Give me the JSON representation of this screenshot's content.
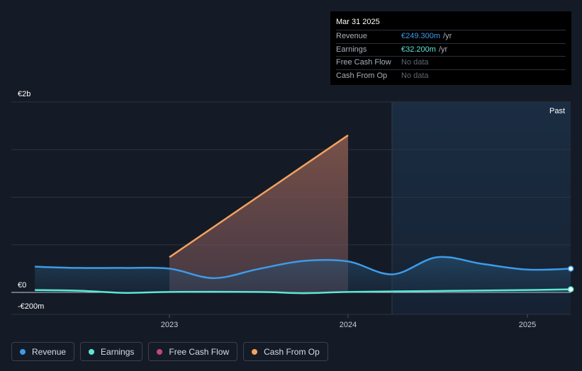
{
  "tooltip": {
    "date": "Mar 31 2025",
    "rows": [
      {
        "label": "Revenue",
        "value": "€249.300m",
        "unit": "/yr",
        "color": "#3d9be9"
      },
      {
        "label": "Earnings",
        "value": "€32.200m",
        "unit": "/yr",
        "color": "#5ee6d6"
      },
      {
        "label": "Free Cash Flow",
        "value": "No data",
        "unit": "",
        "color": ""
      },
      {
        "label": "Cash From Op",
        "value": "No data",
        "unit": "",
        "color": ""
      }
    ]
  },
  "chart_data": {
    "type": "line",
    "y_tick_labels": [
      "€2b",
      "€0",
      "-€200m"
    ],
    "x_tick_labels": [
      "2023",
      "2024",
      "2025"
    ],
    "past_label": "Past",
    "ylim": [
      -200,
      2000
    ],
    "y_unit": "€m",
    "series": [
      {
        "name": "Revenue",
        "color": "#3d9be9",
        "points": [
          [
            "2022-04-01",
            270
          ],
          [
            "2022-07-01",
            257
          ],
          [
            "2022-10-01",
            257
          ],
          [
            "2023-01-01",
            250
          ],
          [
            "2023-04-01",
            150
          ],
          [
            "2023-07-01",
            245
          ],
          [
            "2023-10-01",
            330
          ],
          [
            "2024-01-01",
            325
          ],
          [
            "2024-04-01",
            190
          ],
          [
            "2024-07-01",
            370
          ],
          [
            "2024-10-01",
            300
          ],
          [
            "2025-01-01",
            240
          ],
          [
            "2025-03-31",
            249.3
          ]
        ]
      },
      {
        "name": "Earnings",
        "color": "#5ee6d6",
        "points": [
          [
            "2022-04-01",
            25
          ],
          [
            "2022-07-01",
            18
          ],
          [
            "2022-10-01",
            -5
          ],
          [
            "2023-01-01",
            5
          ],
          [
            "2023-07-01",
            5
          ],
          [
            "2023-10-01",
            -8
          ],
          [
            "2024-01-01",
            5
          ],
          [
            "2024-07-01",
            15
          ],
          [
            "2025-01-01",
            25
          ],
          [
            "2025-03-31",
            32.2
          ]
        ]
      },
      {
        "name": "Free Cash Flow",
        "color": "#c2487e",
        "points": []
      },
      {
        "name": "Cash From Op",
        "color": "#f2a35e",
        "points": [
          [
            "2023-01-01",
            370
          ],
          [
            "2024-01-01",
            1650
          ]
        ]
      }
    ]
  },
  "legend": [
    {
      "label": "Revenue",
      "color": "#3d9be9"
    },
    {
      "label": "Earnings",
      "color": "#5ee6d6"
    },
    {
      "label": "Free Cash Flow",
      "color": "#c2487e"
    },
    {
      "label": "Cash From Op",
      "color": "#f2a35e"
    }
  ]
}
